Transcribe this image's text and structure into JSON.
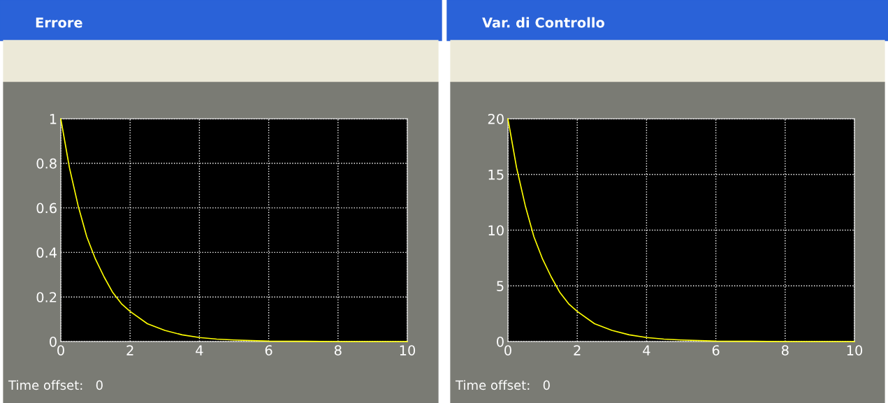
{
  "chart_data": [
    {
      "type": "line",
      "title": "Errore",
      "x": [
        0,
        0.25,
        0.5,
        0.75,
        1,
        1.25,
        1.5,
        1.75,
        2,
        2.5,
        3,
        3.5,
        4,
        4.5,
        5,
        6,
        7,
        8,
        9,
        10
      ],
      "series": [
        {
          "color": "#ffff00",
          "values": [
            1,
            0.78,
            0.61,
            0.47,
            0.37,
            0.29,
            0.22,
            0.17,
            0.135,
            0.08,
            0.05,
            0.03,
            0.018,
            0.011,
            0.007,
            0.002,
            0.001,
            0,
            0,
            0
          ]
        }
      ],
      "xlim": [
        0,
        10
      ],
      "xticks": [
        0,
        2,
        4,
        6,
        8,
        10
      ],
      "ylim": [
        0,
        1
      ],
      "yticks": [
        0,
        0.2,
        0.4,
        0.6,
        0.8,
        1
      ],
      "grid": true,
      "annotations": [
        "Time offset:   0"
      ]
    },
    {
      "type": "line",
      "title": "Var. di Controllo",
      "x": [
        0,
        0.25,
        0.5,
        0.75,
        1,
        1.25,
        1.5,
        1.75,
        2,
        2.5,
        3,
        3.5,
        4,
        4.5,
        5,
        6,
        7,
        8,
        9,
        10
      ],
      "series": [
        {
          "color": "#ffff00",
          "values": [
            20,
            15.6,
            12.2,
            9.4,
            7.4,
            5.8,
            4.4,
            3.4,
            2.7,
            1.6,
            1,
            0.6,
            0.36,
            0.22,
            0.14,
            0.04,
            0.02,
            0,
            0,
            0
          ]
        }
      ],
      "xlim": [
        0,
        10
      ],
      "xticks": [
        0,
        2,
        4,
        6,
        8,
        10
      ],
      "ylim": [
        0,
        20
      ],
      "yticks": [
        0,
        5,
        10,
        15,
        20
      ],
      "grid": true,
      "annotations": [
        "Time offset:   0"
      ]
    }
  ]
}
